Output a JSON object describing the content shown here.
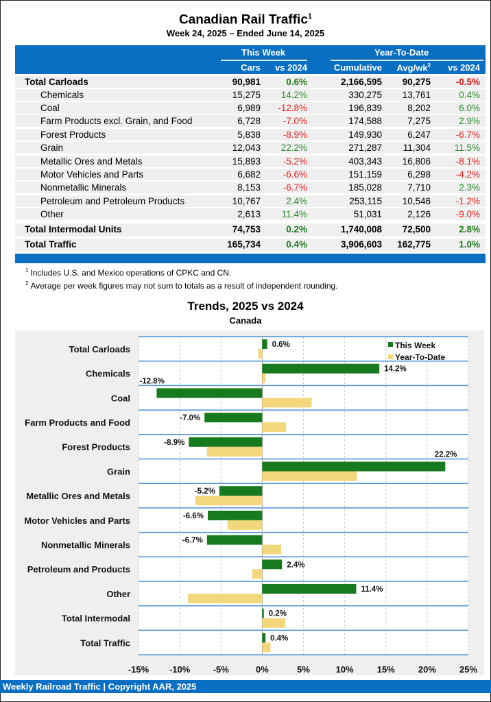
{
  "header": {
    "title": "Canadian Rail Traffic",
    "title_sup": "1",
    "subtitle": "Week 24, 2025 – Ended June 14, 2025"
  },
  "table": {
    "group_headers": {
      "this_week": "This Week",
      "ytd": "Year-To-Date"
    },
    "columns": {
      "cars": "Cars",
      "vs2024_week": "vs 2024",
      "cumulative": "Cumulative",
      "avgwk": "Avg/wk",
      "avgwk_sup": "2",
      "vs2024_ytd": "vs 2024"
    },
    "rows": [
      {
        "label": "Total Carloads",
        "bold": true,
        "indent": false,
        "cars": "90,981",
        "wk_pct": "0.6%",
        "cum": "2,166,595",
        "avg": "90,275",
        "ytd_pct": "-0.5%"
      },
      {
        "label": "Chemicals",
        "bold": false,
        "indent": true,
        "cars": "15,275",
        "wk_pct": "14.2%",
        "cum": "330,275",
        "avg": "13,761",
        "ytd_pct": "0.4%"
      },
      {
        "label": "Coal",
        "bold": false,
        "indent": true,
        "cars": "6,989",
        "wk_pct": "-12.8%",
        "cum": "196,839",
        "avg": "8,202",
        "ytd_pct": "6.0%"
      },
      {
        "label": "Farm Products excl. Grain, and Food",
        "bold": false,
        "indent": true,
        "cars": "6,728",
        "wk_pct": "-7.0%",
        "cum": "174,588",
        "avg": "7,275",
        "ytd_pct": "2.9%"
      },
      {
        "label": "Forest Products",
        "bold": false,
        "indent": true,
        "cars": "5,838",
        "wk_pct": "-8.9%",
        "cum": "149,930",
        "avg": "6,247",
        "ytd_pct": "-6.7%"
      },
      {
        "label": "Grain",
        "bold": false,
        "indent": true,
        "cars": "12,043",
        "wk_pct": "22.2%",
        "cum": "271,287",
        "avg": "11,304",
        "ytd_pct": "11.5%"
      },
      {
        "label": "Metallic Ores and Metals",
        "bold": false,
        "indent": true,
        "cars": "15,893",
        "wk_pct": "-5.2%",
        "cum": "403,343",
        "avg": "16,806",
        "ytd_pct": "-8.1%"
      },
      {
        "label": "Motor Vehicles and Parts",
        "bold": false,
        "indent": true,
        "cars": "6,682",
        "wk_pct": "-6.6%",
        "cum": "151,159",
        "avg": "6,298",
        "ytd_pct": "-4.2%"
      },
      {
        "label": "Nonmetallic Minerals",
        "bold": false,
        "indent": true,
        "cars": "8,153",
        "wk_pct": "-6.7%",
        "cum": "185,028",
        "avg": "7,710",
        "ytd_pct": "2.3%"
      },
      {
        "label": "Petroleum and Petroleum Products",
        "bold": false,
        "indent": true,
        "cars": "10,767",
        "wk_pct": "2.4%",
        "cum": "253,115",
        "avg": "10,546",
        "ytd_pct": "-1.2%"
      },
      {
        "label": "Other",
        "bold": false,
        "indent": true,
        "cars": "2,613",
        "wk_pct": "11.4%",
        "cum": "51,031",
        "avg": "2,126",
        "ytd_pct": "-9.0%"
      },
      {
        "label": "Total Intermodal Units",
        "bold": true,
        "indent": false,
        "cars": "74,753",
        "wk_pct": "0.2%",
        "cum": "1,740,008",
        "avg": "72,500",
        "ytd_pct": "2.8%"
      },
      {
        "label": "Total Traffic",
        "bold": true,
        "indent": false,
        "cars": "165,734",
        "wk_pct": "0.4%",
        "cum": "3,906,603",
        "avg": "162,775",
        "ytd_pct": "1.0%"
      }
    ]
  },
  "footnotes": [
    {
      "mark": "1",
      "text": "Includes U.S. and Mexico operations of CPKC and CN."
    },
    {
      "mark": "2",
      "text": "Average per week figures may not sum to totals as a result of independent rounding."
    }
  ],
  "colors": {
    "brand_blue": "#0a6fc2",
    "this_week": "#187a1f",
    "ytd": "#f3d77c",
    "positive": "#2a8a2a",
    "negative": "#e82020"
  },
  "chart_data": {
    "type": "bar",
    "orientation": "horizontal",
    "title": "Trends, 2025 vs 2024",
    "subtitle": "Canada",
    "categories": [
      "Total Carloads",
      "Chemicals",
      "Coal",
      "Farm Products and Food",
      "Forest Products",
      "Grain",
      "Metallic Ores and Metals",
      "Motor Vehicles and Parts",
      "Nonmetallic Minerals",
      "Petroleum and Products",
      "Other",
      "Total Intermodal",
      "Total Traffic"
    ],
    "series": [
      {
        "name": "This Week",
        "values": [
          0.6,
          14.2,
          -12.8,
          -7.0,
          -8.9,
          22.2,
          -5.2,
          -6.6,
          -6.7,
          2.4,
          11.4,
          0.2,
          0.4
        ],
        "labels": [
          "0.6%",
          "14.2%",
          "-12.8%",
          "-7.0%",
          "-8.9%",
          "22.2%",
          "-5.2%",
          "-6.6%",
          "-6.7%",
          "2.4%",
          "11.4%",
          "0.2%",
          "0.4%"
        ]
      },
      {
        "name": "Year-To-Date",
        "values": [
          -0.5,
          0.4,
          6.0,
          2.9,
          -6.7,
          11.5,
          -8.1,
          -4.2,
          2.3,
          -1.2,
          -9.0,
          2.8,
          1.0
        ]
      }
    ],
    "xlim": [
      -15,
      25
    ],
    "xticks": [
      "-15%",
      "-10%",
      "-5%",
      "0%",
      "5%",
      "10%",
      "15%",
      "20%",
      "25%"
    ],
    "xtick_values": [
      -15,
      -10,
      -5,
      0,
      5,
      10,
      15,
      20,
      25
    ],
    "xlabel": "",
    "ylabel": "",
    "grid": true,
    "legend_position": "top-right"
  },
  "footer": {
    "text": "Weekly Railroad Traffic | Copyright AAR, 2025"
  }
}
